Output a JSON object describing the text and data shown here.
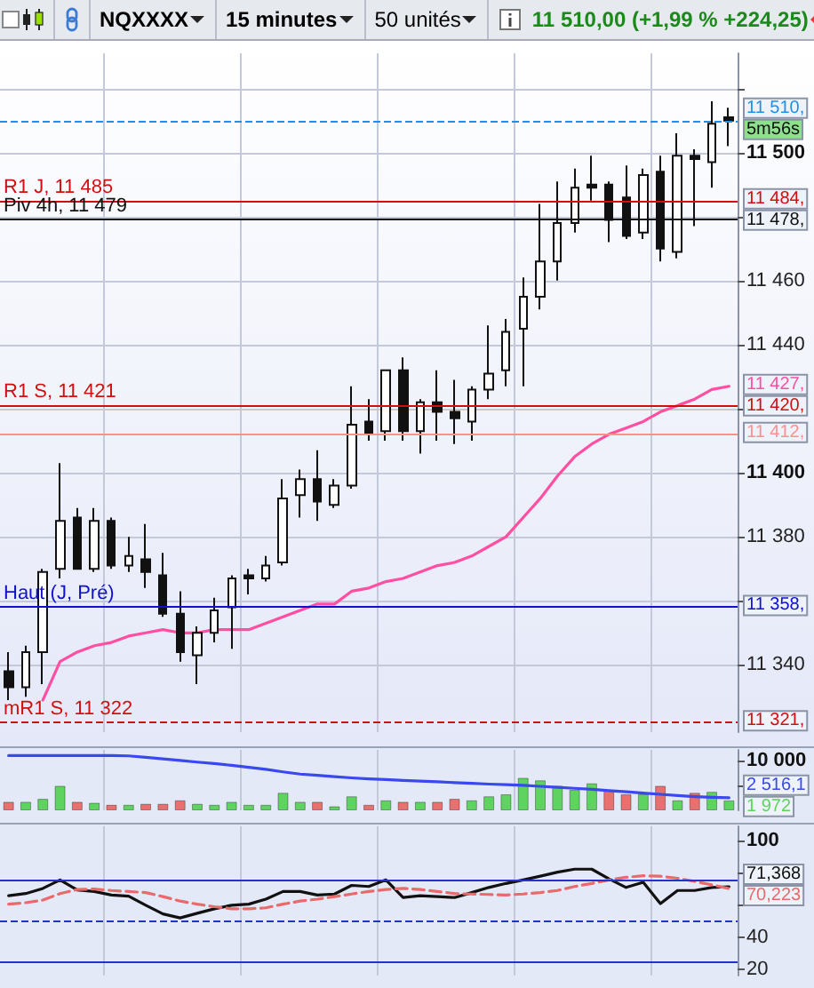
{
  "chart_data": [
    {
      "type": "candlestick",
      "title": "NQXXXX",
      "subtitle": "15 minutes",
      "annotations": [
        "50 unités",
        "11 510,00 (+1,99 % +224,25)",
        "11 427,",
        "11 510,",
        "11 484,",
        "11 478,",
        "11 420,",
        "11 412,",
        "11 358,",
        "11 321,",
        "5m56s"
      ],
      "categories": [
        null,
        null,
        null,
        null,
        null,
        null,
        null,
        null,
        null,
        null,
        null,
        null,
        null,
        null,
        null,
        null,
        null,
        null,
        null,
        null,
        null,
        null,
        null,
        null,
        null,
        null,
        null,
        null,
        null,
        null,
        null,
        null,
        null,
        null,
        null,
        null,
        null,
        null,
        null,
        null,
        null,
        null,
        null
      ],
      "ohlc": [
        [
          11338,
          11344,
          11329,
          11333
        ],
        [
          11333,
          11346,
          11330,
          11344
        ],
        [
          11344,
          11370,
          11334,
          11369
        ],
        [
          11370,
          11403,
          11367,
          11385
        ],
        [
          11386,
          11389,
          11370,
          11370
        ],
        [
          11370,
          11389,
          11369,
          11385
        ],
        [
          11385,
          11386,
          11370,
          11371
        ],
        [
          11371,
          11380,
          11369,
          11374
        ],
        [
          11373,
          11384,
          11364,
          11369
        ],
        [
          11368,
          11375,
          11355,
          11356
        ],
        [
          11356,
          11363,
          11341,
          11344
        ],
        [
          11343,
          11352,
          11334,
          11350
        ],
        [
          11350,
          11361,
          11347,
          11357
        ],
        [
          11358,
          11368,
          11345,
          11367
        ],
        [
          11368,
          11370,
          11362,
          11367
        ],
        [
          11367,
          11374,
          11366,
          11371
        ],
        [
          11372,
          11398,
          11371,
          11392
        ],
        [
          11393,
          11401,
          11386,
          11398
        ],
        [
          11398,
          11407,
          11385,
          11391
        ],
        [
          11390,
          11398,
          11389,
          11396
        ],
        [
          11396,
          11427,
          11395,
          11415
        ],
        [
          11416,
          11423,
          11410,
          11412
        ],
        [
          11413,
          11432,
          11410,
          11432
        ],
        [
          11432,
          11436,
          11410,
          11413
        ],
        [
          11413,
          11423,
          11406,
          11422
        ],
        [
          11422,
          11432,
          11410,
          11419
        ],
        [
          11419,
          11429,
          11409,
          11417
        ],
        [
          11416,
          11427,
          11410,
          11426
        ],
        [
          11426,
          11446,
          11423,
          11431
        ],
        [
          11432,
          11448,
          11427,
          11444
        ],
        [
          11445,
          11461,
          11427,
          11455
        ],
        [
          11455,
          11484,
          11451,
          11466
        ],
        [
          11466,
          11491,
          11460,
          11478
        ],
        [
          11478,
          11495,
          11475,
          11489
        ],
        [
          11490,
          11499,
          11485,
          11489
        ],
        [
          11490,
          11491,
          11472,
          11479
        ],
        [
          11486,
          11496,
          11473,
          11474
        ],
        [
          11475,
          11495,
          11473,
          11493
        ],
        [
          11494,
          11499,
          11466,
          11470
        ],
        [
          11469,
          11506,
          11467,
          11499
        ],
        [
          11499,
          11501,
          11477,
          11498
        ],
        [
          11497,
          11516,
          11489,
          11509
        ],
        [
          11511,
          11514,
          11502,
          11510
        ]
      ],
      "series": [
        {
          "type": "line",
          "color": "#ff4fa3",
          "values": [
            null,
            null,
            11329,
            11341,
            11344,
            11346,
            11347,
            11349,
            11350,
            11351,
            11350,
            11350,
            11351,
            11351,
            11351,
            11353,
            11355,
            11357,
            11359,
            11359,
            11363,
            11364,
            11366,
            11367,
            11369,
            11371,
            11372,
            11374,
            11377,
            11380,
            11386,
            11392,
            11399,
            11405,
            11409,
            11412,
            11414,
            11416,
            11419,
            11421,
            11423,
            11426,
            11427
          ]
        }
      ],
      "ylim": [
        11319,
        11531
      ],
      "yticks": [
        {
          "value": 11340,
          "label": "11 340"
        },
        {
          "value": 11360,
          "label": null
        },
        {
          "value": 11380,
          "label": "11 380"
        },
        {
          "value": 11400,
          "label": "11 400"
        },
        {
          "value": 11420,
          "label": null
        },
        {
          "value": 11440,
          "label": "11 440"
        },
        {
          "value": 11460,
          "label": "11 460"
        },
        {
          "value": 11480,
          "label": null
        },
        {
          "value": 11500,
          "label": "11 500"
        },
        {
          "value": 11520,
          "label": null
        }
      ],
      "ref_lines": [
        {
          "axis": "y",
          "value": 11510,
          "color": "#1e90e8",
          "line_style": "dashed"
        },
        {
          "axis": "y",
          "value": 11485,
          "label": "R1 J, 11 485",
          "color": "#d01010"
        },
        {
          "axis": "y",
          "value": 11479,
          "label": "Piv 4h, 11 479",
          "color": "#111111"
        },
        {
          "axis": "y",
          "value": 11421,
          "label": "R1 S, 11 421",
          "color": "#d01010"
        },
        {
          "axis": "y",
          "value": 11412,
          "color": "#ff8f8f"
        },
        {
          "axis": "y",
          "value": 11358,
          "label": "Haut (J, Pré)",
          "color": "#1010d0"
        },
        {
          "axis": "y",
          "value": 11322,
          "label": "mR1 S, 11 322",
          "color": "#d01010",
          "line_style": "dashed"
        }
      ],
      "grid": true,
      "marker": "none"
    },
    {
      "type": "bar",
      "annotations": [
        "1 972",
        "2 516,1"
      ],
      "categories": [
        null,
        null,
        null,
        null,
        null,
        null,
        null,
        null,
        null,
        null,
        null,
        null,
        null,
        null,
        null,
        null,
        null,
        null,
        null,
        null,
        null,
        null,
        null,
        null,
        null,
        null,
        null,
        null,
        null,
        null,
        null,
        null,
        null,
        null,
        null,
        null,
        null,
        null,
        null,
        null,
        null,
        null,
        null
      ],
      "series": [
        {
          "type": "bar",
          "values": [
            1700,
            1700,
            2300,
            4900,
            1700,
            1500,
            1100,
            1100,
            1300,
            1300,
            2000,
            1300,
            1100,
            1700,
            1100,
            1100,
            3500,
            1700,
            1700,
            800,
            2800,
            1100,
            2000,
            1700,
            1700,
            1700,
            2300,
            2000,
            2800,
            3200,
            6500,
            6000,
            4900,
            4100,
            5400,
            3900,
            3200,
            3200,
            4900,
            2000,
            3500,
            3700,
            1972
          ],
          "colors": [
            "#e8706f",
            "#5fd35f",
            "#5fd35f",
            "#5fd35f",
            "#e8706f",
            "#5fd35f",
            "#e8706f",
            "#5fd35f",
            "#e8706f",
            "#e8706f",
            "#e8706f",
            "#5fd35f",
            "#5fd35f",
            "#5fd35f",
            "#5fd35f",
            "#5fd35f",
            "#5fd35f",
            "#5fd35f",
            "#e8706f",
            "#5fd35f",
            "#5fd35f",
            "#e8706f",
            "#5fd35f",
            "#e8706f",
            "#5fd35f",
            "#e8706f",
            "#e8706f",
            "#5fd35f",
            "#5fd35f",
            "#5fd35f",
            "#5fd35f",
            "#5fd35f",
            "#5fd35f",
            "#5fd35f",
            "#5fd35f",
            "#e8706f",
            "#e8706f",
            "#5fd35f",
            "#e8706f",
            "#5fd35f",
            "#e8706f",
            "#5fd35f",
            "#5fd35f"
          ]
        },
        {
          "type": "line",
          "color": "#3a48f0",
          "values": [
            10950,
            10950,
            10950,
            10950,
            10950,
            10950,
            10950,
            10900,
            10600,
            10300,
            10000,
            9650,
            9350,
            9000,
            8600,
            8200,
            7700,
            7250,
            7000,
            6750,
            6500,
            6300,
            6150,
            6000,
            5850,
            5700,
            5550,
            5400,
            5250,
            5150,
            5000,
            4800,
            4600,
            4400,
            4200,
            3950,
            3700,
            3450,
            3200,
            2950,
            2750,
            2600,
            2516.1
          ]
        }
      ],
      "ylim": [
        0,
        12100
      ],
      "yticks": [
        {
          "value": 5000,
          "label": null
        },
        {
          "value": 10000,
          "label": "10 000"
        }
      ],
      "grid": "x",
      "marker": "none"
    },
    {
      "type": "line",
      "annotations": [
        "71,368",
        "70,223"
      ],
      "categories": [
        null,
        null,
        null,
        null,
        null,
        null,
        null,
        null,
        null,
        null,
        null,
        null,
        null,
        null,
        null,
        null,
        null,
        null,
        null,
        null,
        null,
        null,
        null,
        null,
        null,
        null,
        null,
        null,
        null,
        null,
        null,
        null,
        null,
        null,
        null,
        null,
        null,
        null,
        null,
        null,
        null,
        null,
        null
      ],
      "series": [
        {
          "color": "#111111",
          "values": [
            65.8,
            67.1,
            70.3,
            75.6,
            69.3,
            68.4,
            66.2,
            65.5,
            59.8,
            54.4,
            51.9,
            54.8,
            57.6,
            59.8,
            60.5,
            63.6,
            68.4,
            68.4,
            66.2,
            66.8,
            72.2,
            71.5,
            75.6,
            64.6,
            65.8,
            65.2,
            64.6,
            67.7,
            70.9,
            73.4,
            75.6,
            77.9,
            80.4,
            82.3,
            82.3,
            76.3,
            70.9,
            74.1,
            60.8,
            69.0,
            69.0,
            70.9,
            71.368
          ]
        },
        {
          "color": "#e86a6a",
          "line_style": "dashed",
          "values": [
            60.5,
            61.4,
            63.0,
            67.1,
            69.6,
            69.9,
            69.0,
            68.4,
            67.7,
            65.2,
            62.4,
            60.5,
            58.9,
            57.6,
            57.6,
            58.2,
            60.5,
            62.4,
            63.6,
            65.2,
            66.8,
            68.4,
            69.6,
            70.3,
            69.6,
            68.4,
            67.1,
            66.8,
            66.5,
            66.2,
            66.8,
            67.7,
            69.0,
            71.5,
            73.4,
            75.6,
            77.2,
            78.2,
            77.9,
            76.6,
            74.7,
            72.5,
            70.223
          ]
        }
      ],
      "ylim": [
        16,
        109
      ],
      "yticks": [
        100,
        {
          "value": 80,
          "label": null
        },
        {
          "value": 60,
          "label": null
        },
        40,
        20
      ],
      "ref_lines": [
        {
          "axis": "y",
          "value": 75,
          "color": "#2233cc"
        },
        {
          "axis": "y",
          "value": 50,
          "color": "#2233cc",
          "line_style": "dashed"
        },
        {
          "axis": "y",
          "value": 25,
          "color": "#2233cc"
        }
      ],
      "grid": "x",
      "marker": "none"
    }
  ]
}
